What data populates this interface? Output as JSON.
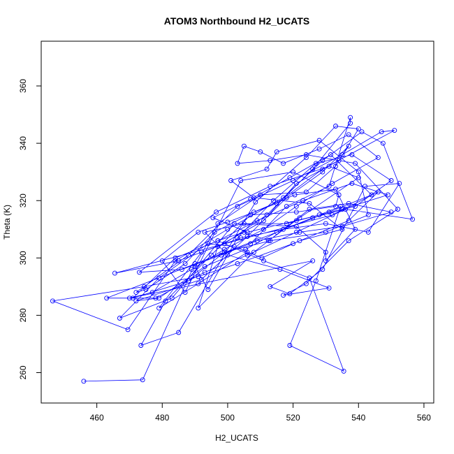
{
  "chart_data": {
    "type": "line",
    "title": "ATOM3 Northbound H2_UCATS",
    "xlabel": "H2_UCATS",
    "ylabel": "Theta (K)",
    "xlim": [
      443,
      563
    ],
    "ylim": [
      249.4,
      375.6
    ],
    "xticks": [
      460,
      480,
      500,
      520,
      540,
      560
    ],
    "yticks": [
      260,
      280,
      300,
      320,
      340,
      360
    ],
    "grid": false,
    "legend": "none",
    "series": [
      {
        "color": "#0000ff",
        "marker": "open-circle",
        "points": [
          [
            456.0,
            257.0
          ],
          [
            474.0,
            257.5
          ],
          [
            490.0,
            298.0
          ],
          [
            507.0,
            305.0
          ],
          [
            518.0,
            318.0
          ],
          [
            531.0,
            325.0
          ],
          [
            537.5,
            349.0
          ],
          [
            537.5,
            347.0
          ],
          [
            526.0,
            331.0
          ],
          [
            512.0,
            315.0
          ],
          [
            499.0,
            305.0
          ],
          [
            485.0,
            299.0
          ],
          [
            465.5,
            294.7
          ],
          [
            532.0,
            315.0
          ],
          [
            546.0,
            323.0
          ],
          [
            537.0,
            313.0
          ],
          [
            520.0,
            305.0
          ],
          [
            503.0,
            298.0
          ],
          [
            491.0,
            293.5
          ],
          [
            474.5,
            290.0
          ],
          [
            446.5,
            285.0
          ],
          [
            469.5,
            275.0
          ],
          [
            484.0,
            299.0
          ],
          [
            500.0,
            310.0
          ],
          [
            517.0,
            321.0
          ],
          [
            529.0,
            334.0
          ],
          [
            541.0,
            344.0
          ],
          [
            547.5,
            340.0
          ],
          [
            556.5,
            313.5
          ],
          [
            536.0,
            317.0
          ],
          [
            521.0,
            309.0
          ],
          [
            506.0,
            301.0
          ],
          [
            493.0,
            295.0
          ],
          [
            478.0,
            286.0
          ],
          [
            463.0,
            286.0
          ],
          [
            531.0,
            316.0
          ],
          [
            544.0,
            322.0
          ],
          [
            531.5,
            336.0
          ],
          [
            519.0,
            328.0
          ],
          [
            507.0,
            320.5
          ],
          [
            495.5,
            314.0
          ],
          [
            506.0,
            309.0
          ],
          [
            521.0,
            313.0
          ],
          [
            535.0,
            317.0
          ],
          [
            549.0,
            322.0
          ],
          [
            538.0,
            326.0
          ],
          [
            523.0,
            320.0
          ],
          [
            509.0,
            313.0
          ],
          [
            497.0,
            306.0
          ],
          [
            484.0,
            300.0
          ],
          [
            471.0,
            286.0
          ],
          [
            488.0,
            292.0
          ],
          [
            499.0,
            302.0
          ],
          [
            513.0,
            306.0
          ],
          [
            530.0,
            309.0
          ],
          [
            543.0,
            315.0
          ],
          [
            540.0,
            330.0
          ],
          [
            528.0,
            341.0
          ],
          [
            515.0,
            337.0
          ],
          [
            512.0,
            331.0
          ],
          [
            501.0,
            327.0
          ],
          [
            508.0,
            321.0
          ],
          [
            525.0,
            319.0
          ],
          [
            535.0,
            310.0
          ],
          [
            522.0,
            306.0
          ],
          [
            510.5,
            300.0
          ],
          [
            502.0,
            304.0
          ],
          [
            494.0,
            305.0
          ],
          [
            479.0,
            293.0
          ],
          [
            467.0,
            279.0
          ],
          [
            483.0,
            286.0
          ],
          [
            502.0,
            312.0
          ],
          [
            521.0,
            311.0
          ],
          [
            530.0,
            302.0
          ],
          [
            530.0,
            299.0
          ],
          [
            539.0,
            310.0
          ],
          [
            533.0,
            324.0
          ],
          [
            520.5,
            322.0
          ],
          [
            508.0,
            316.0
          ],
          [
            496.0,
            309.0
          ],
          [
            487.0,
            298.0
          ],
          [
            475.0,
            289.0
          ],
          [
            472.0,
            288.0
          ],
          [
            488.0,
            301.0
          ],
          [
            503.0,
            318.0
          ],
          [
            520.0,
            327.0
          ],
          [
            535.0,
            336.0
          ],
          [
            547.0,
            344.0
          ],
          [
            551.0,
            344.5
          ],
          [
            529.0,
            331.0
          ],
          [
            515.0,
            319.0
          ],
          [
            500.0,
            312.5
          ],
          [
            491.0,
            309.0
          ],
          [
            480.0,
            299.0
          ],
          [
            487.0,
            288.0
          ],
          [
            504.0,
            327.0
          ],
          [
            520.0,
            330.0
          ],
          [
            534.0,
            322.0
          ],
          [
            533.0,
            318.0
          ],
          [
            521.0,
            316.0
          ],
          [
            507.0,
            315.0
          ],
          [
            495.0,
            301.0
          ],
          [
            481.0,
            285.0
          ],
          [
            473.5,
            269.5
          ],
          [
            485.0,
            274.0
          ],
          [
            508.5,
            319.5
          ],
          [
            524.0,
            335.0
          ],
          [
            533.0,
            346.0
          ],
          [
            540.0,
            345.0
          ],
          [
            533.0,
            332.0
          ],
          [
            524.0,
            323.0
          ],
          [
            510.0,
            322.0
          ],
          [
            497.0,
            312.0
          ],
          [
            490.0,
            297.0
          ],
          [
            494.0,
            289.0
          ],
          [
            503.0,
            307.0
          ],
          [
            514.0,
            320.0
          ],
          [
            527.0,
            333.0
          ],
          [
            538.0,
            336.0
          ],
          [
            550.0,
            327.0
          ],
          [
            539.0,
            318.0
          ],
          [
            526.0,
            314.0
          ],
          [
            515.0,
            309.0
          ],
          [
            505.5,
            303.0
          ],
          [
            493.0,
            297.0
          ],
          [
            479.0,
            286.0
          ],
          [
            472.0,
            285.0
          ],
          [
            492.0,
            292.5
          ],
          [
            506.0,
            307.5
          ],
          [
            518.0,
            321.0
          ],
          [
            529.0,
            330.0
          ],
          [
            537.0,
            339.0
          ],
          [
            534.0,
            334.0
          ],
          [
            521.0,
            326.0
          ],
          [
            511.0,
            313.0
          ],
          [
            497.0,
            304.0
          ],
          [
            491.0,
            282.5
          ],
          [
            508.0,
            302.0
          ],
          [
            525.0,
            317.0
          ],
          [
            537.0,
            319.0
          ],
          [
            550.0,
            316.0
          ],
          [
            535.0,
            311.0
          ],
          [
            522.0,
            309.0
          ],
          [
            509.0,
            306.0
          ],
          [
            498.0,
            301.0
          ],
          [
            486.0,
            296.0
          ],
          [
            473.0,
            295.0
          ],
          [
            496.5,
            316.0
          ],
          [
            513.0,
            325.0
          ],
          [
            531.0,
            332.0
          ],
          [
            540.0,
            328.0
          ],
          [
            522.0,
            314.0
          ],
          [
            512.5,
            306.0
          ],
          [
            505.0,
            309.0
          ],
          [
            497.0,
            306.0
          ],
          [
            511.0,
            299.0
          ],
          [
            525.0,
            293.0
          ],
          [
            535.5,
            260.5
          ],
          [
            519.0,
            269.5
          ],
          [
            527.0,
            292.0
          ],
          [
            534.5,
            318.0
          ],
          [
            528.0,
            315.0
          ],
          [
            518.0,
            312.0
          ],
          [
            505.0,
            312.0
          ],
          [
            493.0,
            309.0
          ],
          [
            500.0,
            301.0
          ],
          [
            516.0,
            296.0
          ],
          [
            531.0,
            289.5
          ],
          [
            517.0,
            287.0
          ],
          [
            524.0,
            291.0
          ],
          [
            537.0,
            306.0
          ],
          [
            552.0,
            317.0
          ],
          [
            539.0,
            333.0
          ],
          [
            524.0,
            336.0
          ],
          [
            513.0,
            334.0
          ],
          [
            503.0,
            333.0
          ],
          [
            505.0,
            339.0
          ],
          [
            510.0,
            337.0
          ],
          [
            517.0,
            333.0
          ],
          [
            528.0,
            338.0
          ],
          [
            537.0,
            343.0
          ],
          [
            546.0,
            335.0
          ],
          [
            532.0,
            326.0
          ],
          [
            521.0,
            318.0
          ],
          [
            511.0,
            310.0
          ],
          [
            499.0,
            303.0
          ],
          [
            489.0,
            296.0
          ],
          [
            477.0,
            288.0
          ],
          [
            470.0,
            286.0
          ],
          [
            526.0,
            299.0
          ],
          [
            513.0,
            290.0
          ],
          [
            519.0,
            287.5
          ],
          [
            529.0,
            296.0
          ],
          [
            542.0,
            325.0
          ],
          [
            552.5,
            326.0
          ],
          [
            543.0,
            309.0
          ],
          [
            530.0,
            312.0
          ],
          [
            517.0,
            310.0
          ],
          [
            504.0,
            307.0
          ],
          [
            492.0,
            302.0
          ],
          [
            479.0,
            282.5
          ],
          [
            491.0,
            291.0
          ],
          [
            506.0,
            302.0
          ]
        ]
      }
    ]
  }
}
